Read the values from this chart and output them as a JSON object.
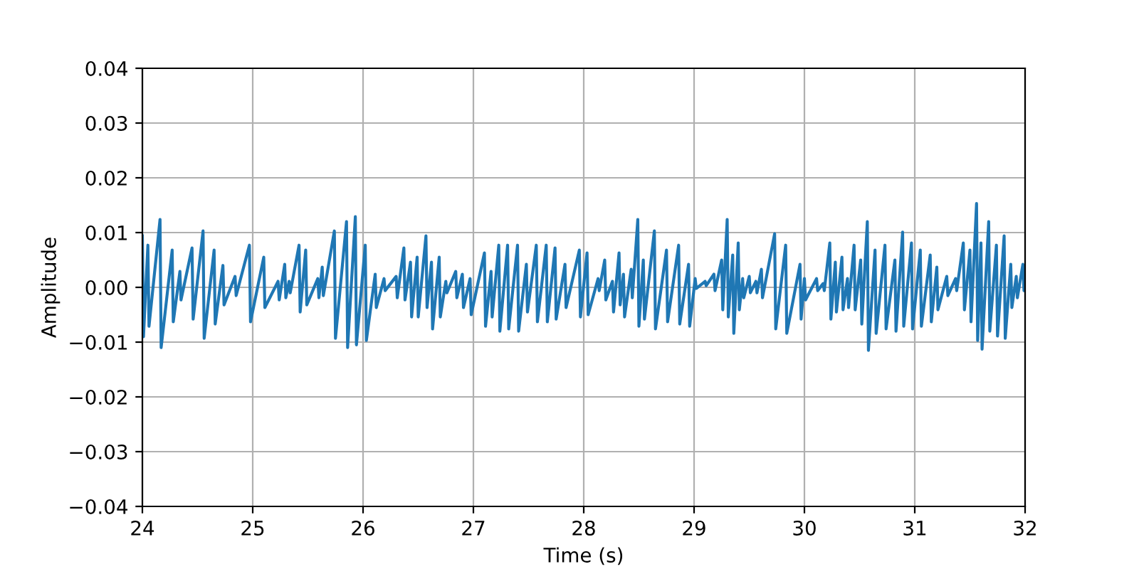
{
  "chart_data": {
    "type": "line",
    "xlabel": "Time (s)",
    "ylabel": "Amplitude",
    "series": [
      {
        "color": "#1f77b4",
        "x": [
          24.0,
          24.01,
          24.05,
          24.06,
          24.16,
          24.17,
          24.27,
          24.28,
          24.34,
          24.35,
          24.45,
          24.46,
          24.55,
          24.56,
          24.65,
          24.66,
          24.73,
          24.74,
          24.84,
          24.85,
          24.97,
          24.98,
          25.1,
          25.11,
          25.23,
          25.24,
          25.29,
          25.3,
          25.33,
          25.34,
          25.42,
          25.43,
          25.48,
          25.49,
          25.59,
          25.6,
          25.63,
          25.64,
          25.74,
          25.75,
          25.85,
          25.86,
          25.93,
          25.94,
          26.02,
          26.03,
          26.11,
          26.12,
          26.19,
          26.2,
          26.3,
          26.31,
          26.37,
          26.38,
          26.43,
          26.44,
          26.49,
          26.5,
          26.57,
          26.58,
          26.62,
          26.63,
          26.69,
          26.7,
          26.75,
          26.76,
          26.84,
          26.85,
          26.9,
          26.91,
          26.97,
          26.98,
          27.1,
          27.11,
          27.16,
          27.17,
          27.23,
          27.24,
          27.31,
          27.32,
          27.4,
          27.41,
          27.48,
          27.49,
          27.57,
          27.58,
          27.66,
          27.67,
          27.74,
          27.75,
          27.83,
          27.84,
          27.96,
          27.97,
          28.03,
          28.04,
          28.13,
          28.14,
          28.19,
          28.2,
          28.26,
          28.27,
          28.32,
          28.33,
          28.36,
          28.37,
          28.43,
          28.44,
          28.49,
          28.5,
          28.54,
          28.55,
          28.64,
          28.65,
          28.75,
          28.76,
          28.86,
          28.87,
          28.95,
          28.96,
          29.01,
          29.02,
          29.1,
          29.11,
          29.18,
          29.19,
          29.25,
          29.26,
          29.3,
          29.31,
          29.35,
          29.36,
          29.4,
          29.41,
          29.44,
          29.45,
          29.5,
          29.51,
          29.56,
          29.57,
          29.61,
          29.62,
          29.73,
          29.74,
          29.83,
          29.84,
          29.96,
          29.97,
          30.0,
          30.01,
          30.11,
          30.12,
          30.17,
          30.18,
          30.23,
          30.24,
          30.28,
          30.29,
          30.34,
          30.35,
          30.39,
          30.4,
          30.45,
          30.46,
          30.51,
          30.52,
          30.57,
          30.58,
          30.64,
          30.65,
          30.73,
          30.74,
          30.82,
          30.83,
          30.89,
          30.9,
          30.97,
          30.98,
          31.05,
          31.06,
          31.14,
          31.15,
          31.2,
          31.21,
          31.29,
          31.3,
          31.37,
          31.38,
          31.44,
          31.45,
          31.5,
          31.51,
          31.56,
          31.57,
          31.6,
          31.61,
          31.67,
          31.68,
          31.74,
          31.75,
          31.81,
          31.82,
          31.87,
          31.88,
          31.92,
          31.93,
          31.98,
          31.99,
          32.0
        ],
        "values": [
          0.0094,
          -0.009,
          0.0077,
          -0.0071,
          0.0124,
          -0.011,
          0.0068,
          -0.0063,
          0.0029,
          -0.0023,
          0.0072,
          -0.0058,
          0.0103,
          -0.0093,
          0.0068,
          -0.0067,
          0.004,
          -0.0032,
          0.002,
          -0.0015,
          0.0077,
          -0.0063,
          0.0055,
          -0.0037,
          0.0011,
          -0.0023,
          0.0042,
          -0.0019,
          0.0011,
          -0.001,
          0.0077,
          -0.0045,
          0.0068,
          -0.0032,
          0.0016,
          -0.0019,
          0.0037,
          -0.0015,
          0.0103,
          -0.0093,
          0.012,
          -0.011,
          0.0129,
          -0.0105,
          0.0077,
          -0.0097,
          0.0024,
          -0.0037,
          0.0016,
          -0.0006,
          0.002,
          -0.0019,
          0.0072,
          -0.0023,
          0.0046,
          -0.0054,
          0.0055,
          -0.0054,
          0.0094,
          -0.0037,
          0.0046,
          -0.0076,
          0.0055,
          -0.0054,
          0.0011,
          -0.001,
          0.0029,
          -0.0019,
          0.0024,
          -0.0037,
          0.0016,
          -0.005,
          0.0063,
          -0.0071,
          0.0029,
          -0.0054,
          0.0077,
          -0.008,
          0.0077,
          -0.0076,
          0.0077,
          -0.008,
          0.0042,
          -0.0045,
          0.0077,
          -0.0063,
          0.0077,
          -0.0063,
          0.0072,
          -0.0058,
          0.0042,
          -0.0037,
          0.0068,
          -0.0054,
          0.0063,
          -0.005,
          0.0016,
          -0.0006,
          0.005,
          -0.0023,
          0.0011,
          -0.0045,
          0.0063,
          -0.0032,
          0.0024,
          -0.0054,
          0.0033,
          -0.0019,
          0.0124,
          -0.0071,
          0.005,
          -0.0058,
          0.0103,
          -0.0076,
          0.0068,
          -0.0063,
          0.0077,
          -0.0067,
          0.0042,
          -0.0071,
          0.0016,
          -0.0002,
          0.0011,
          0.0003,
          0.0024,
          -0.0006,
          0.005,
          -0.0041,
          0.0124,
          -0.0054,
          0.0059,
          -0.0084,
          0.0081,
          -0.0041,
          0.0016,
          -0.0019,
          0.002,
          -0.001,
          0.0011,
          -0.001,
          0.0033,
          -0.0019,
          0.0098,
          -0.0076,
          0.0077,
          -0.0084,
          0.0042,
          -0.0058,
          0.0016,
          -0.0023,
          0.0016,
          -0.0006,
          0.0007,
          -0.0006,
          0.0081,
          -0.0058,
          0.0046,
          -0.0045,
          0.0055,
          -0.0041,
          0.0016,
          -0.0037,
          0.0077,
          -0.0041,
          0.005,
          -0.0067,
          0.012,
          -0.0115,
          0.0068,
          -0.0084,
          0.0077,
          -0.0076,
          0.005,
          -0.008,
          0.0101,
          -0.0071,
          0.0081,
          -0.0076,
          0.0068,
          -0.0071,
          0.0059,
          -0.0063,
          0.0037,
          -0.0041,
          0.002,
          -0.0015,
          0.0016,
          -0.0006,
          0.0081,
          -0.0041,
          0.0068,
          -0.0063,
          0.0153,
          -0.0097,
          0.0081,
          -0.0113,
          0.012,
          -0.008,
          0.0077,
          -0.0089,
          0.0094,
          -0.0093,
          0.0042,
          -0.0037,
          0.002,
          -0.0019,
          0.0042,
          -0.0006,
          0.003
        ]
      }
    ],
    "xlim": [
      24,
      32
    ],
    "xticks": [
      24,
      25,
      26,
      27,
      28,
      29,
      30,
      31,
      32
    ],
    "ylim": [
      -0.04,
      0.04
    ],
    "yticks": [
      {
        "value": -0.04,
        "label": "−0.04"
      },
      {
        "value": -0.03,
        "label": "−0.03"
      },
      {
        "value": -0.02,
        "label": "−0.02"
      },
      {
        "value": -0.01,
        "label": "−0.01"
      },
      {
        "value": 0,
        "label": "0.00"
      },
      {
        "value": 0.01,
        "label": "0.01"
      },
      {
        "value": 0.02,
        "label": "0.02"
      },
      {
        "value": 0.03,
        "label": "0.03"
      },
      {
        "value": 0.04,
        "label": "0.04"
      }
    ],
    "grid": true
  }
}
